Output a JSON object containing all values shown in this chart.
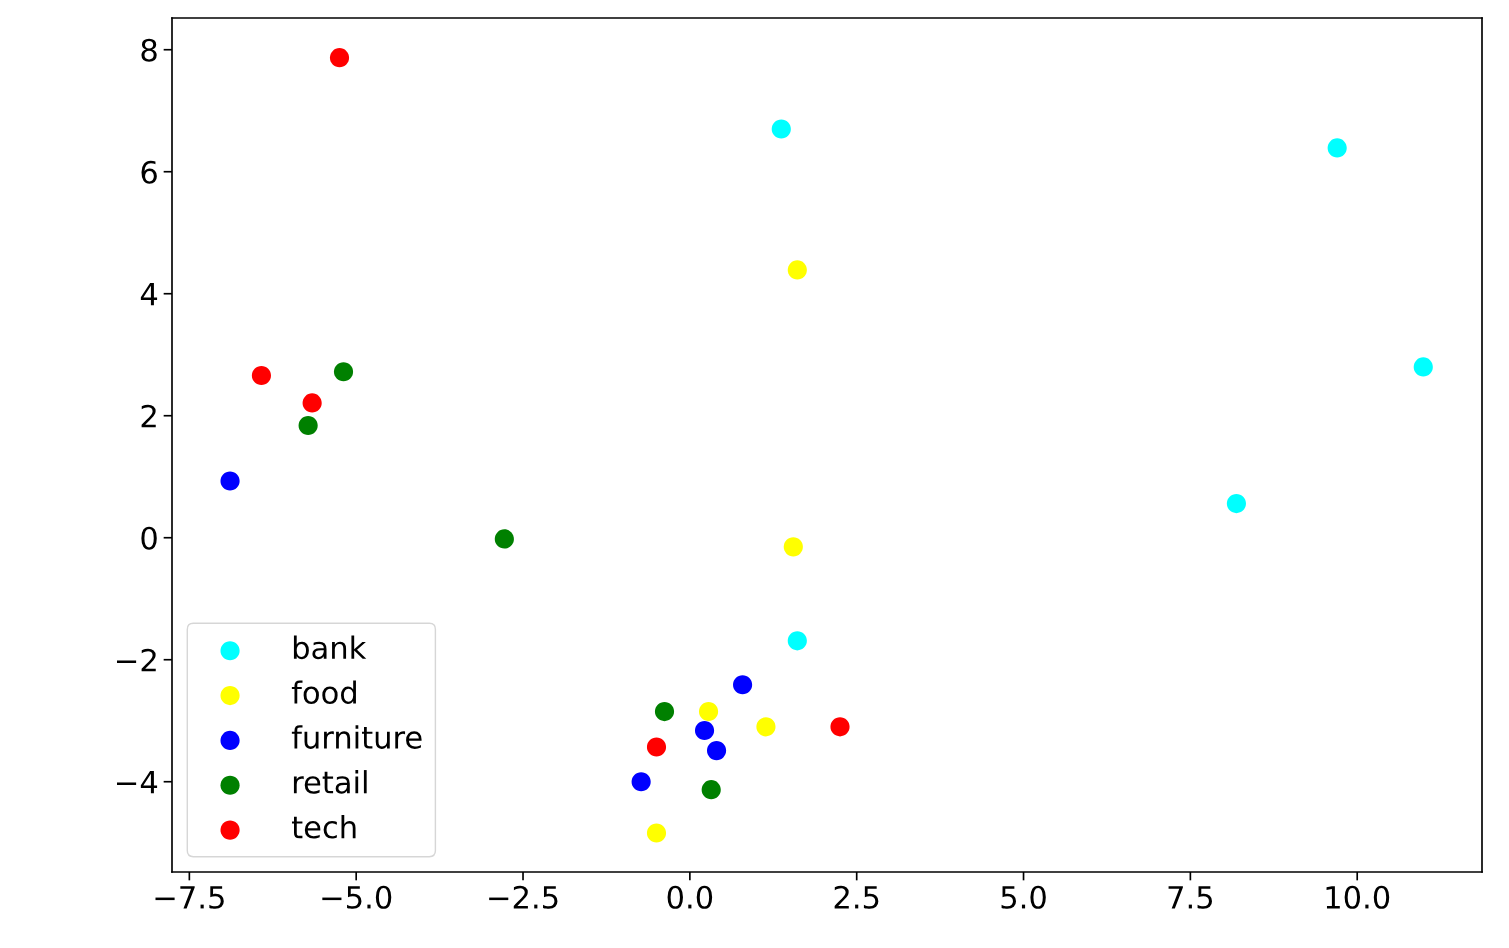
{
  "chart_data": {
    "type": "scatter",
    "marker": "circle",
    "legend": "bottom left",
    "grid": false,
    "xlim": [
      -7.76,
      11.87
    ],
    "ylim": [
      -5.48,
      8.52
    ],
    "xticks": [
      {
        "value": -7.5,
        "label": "−7.5"
      },
      {
        "value": -5.0,
        "label": "−5.0"
      },
      {
        "value": -2.5,
        "label": "−2.5"
      },
      {
        "value": 0,
        "label": "0.0"
      },
      {
        "value": 2.5,
        "label": "2.5"
      },
      {
        "value": 5,
        "label": "5.0"
      },
      {
        "value": 7.5,
        "label": "7.5"
      },
      {
        "value": 10,
        "label": "10.0"
      }
    ],
    "yticks": [
      {
        "value": -4,
        "label": "−4"
      },
      {
        "value": -2,
        "label": "−2"
      },
      0,
      2,
      4,
      6,
      8
    ],
    "series": [
      {
        "name": "bank",
        "color": "#00ffff",
        "x": [
          1.37,
          9.7,
          10.99,
          8.19,
          1.61
        ],
        "values": [
          6.7,
          6.39,
          2.8,
          0.56,
          -1.69
        ]
      },
      {
        "name": "food",
        "color": "#ffff00",
        "x": [
          1.61,
          1.55,
          0.28,
          1.14,
          -0.5
        ],
        "values": [
          4.39,
          -0.15,
          -2.85,
          -3.1,
          -4.84
        ]
      },
      {
        "name": "furniture",
        "color": "#0000ff",
        "x": [
          -6.89,
          0.79,
          0.22,
          0.4,
          -0.73
        ],
        "values": [
          0.93,
          -2.41,
          -3.16,
          -3.49,
          -4.0
        ]
      },
      {
        "name": "retail",
        "color": "#008000",
        "x": [
          -5.19,
          -5.72,
          -2.78,
          -0.38,
          0.32
        ],
        "values": [
          2.72,
          1.84,
          -0.02,
          -2.85,
          -4.13
        ]
      },
      {
        "name": "tech",
        "color": "#ff0000",
        "x": [
          -5.25,
          -6.42,
          -5.66,
          -0.5,
          2.25
        ],
        "values": [
          7.87,
          2.66,
          2.21,
          -3.43,
          -3.1
        ]
      }
    ]
  }
}
